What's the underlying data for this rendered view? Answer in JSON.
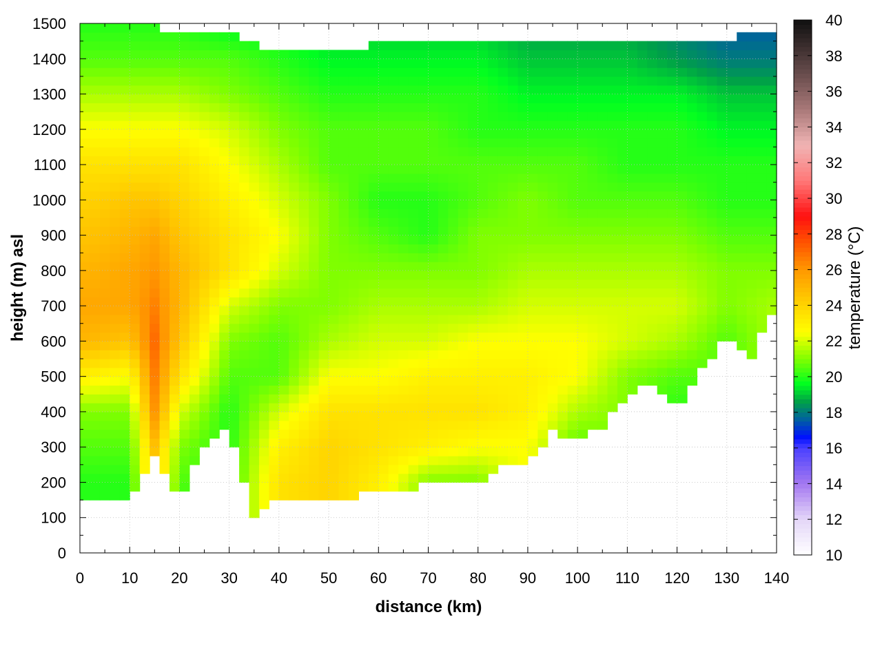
{
  "chart_data": {
    "type": "heatmap",
    "xlabel": "distance (km)",
    "ylabel": "height (m) asl",
    "colorbar_label": "temperature (°C)",
    "xlim": [
      0,
      140
    ],
    "ylim": [
      0,
      1500
    ],
    "clim": [
      10,
      40
    ],
    "grid": true,
    "x_ticks": [
      0,
      10,
      20,
      30,
      40,
      50,
      60,
      70,
      80,
      90,
      100,
      110,
      120,
      130,
      140
    ],
    "y_ticks": [
      0,
      100,
      200,
      300,
      400,
      500,
      600,
      700,
      800,
      900,
      1000,
      1100,
      1200,
      1300,
      1400,
      1500
    ],
    "colorbar_ticks": [
      10,
      12,
      14,
      16,
      18,
      20,
      22,
      24,
      26,
      28,
      30,
      32,
      34,
      36,
      38,
      40
    ],
    "colormap": [
      [
        10,
        "#ffffff"
      ],
      [
        12,
        "#e4d6f8"
      ],
      [
        14,
        "#a478f0"
      ],
      [
        16,
        "#4a40ff"
      ],
      [
        16.6,
        "#0010ff"
      ],
      [
        17.6,
        "#0060a0"
      ],
      [
        18.6,
        "#00a048"
      ],
      [
        19.6,
        "#00ff20"
      ],
      [
        21,
        "#80ff00"
      ],
      [
        22.5,
        "#ffff00"
      ],
      [
        24,
        "#ffd400"
      ],
      [
        26,
        "#ff9800"
      ],
      [
        27.6,
        "#ff5000"
      ],
      [
        29,
        "#ff1010"
      ],
      [
        31,
        "#ff7878"
      ],
      [
        33,
        "#f0b4b4"
      ],
      [
        35,
        "#a87878"
      ],
      [
        37,
        "#684c4c"
      ],
      [
        40,
        "#101010"
      ]
    ],
    "x": [
      0,
      10,
      15,
      20,
      30,
      40,
      50,
      60,
      70,
      80,
      90,
      100,
      110,
      120,
      130,
      140
    ],
    "heights": [
      100,
      200,
      300,
      400,
      500,
      600,
      700,
      800,
      900,
      1000,
      1100,
      1200,
      1300,
      1400,
      1500
    ],
    "temperature": [
      [
        20,
        20,
        20.5,
        21,
        23,
        25,
        25.5,
        25,
        24.5,
        24,
        23.5,
        22.5,
        21.5,
        20.5,
        20
      ],
      [
        20,
        20,
        20.5,
        21,
        22.5,
        24.5,
        25.5,
        25.5,
        25,
        24.5,
        23.5,
        22.5,
        21.5,
        20.5,
        20
      ],
      [
        24.5,
        24.5,
        24.5,
        26,
        26.5,
        27,
        26.5,
        26,
        25.5,
        24.5,
        23.5,
        22.5,
        21.5,
        20.5,
        20
      ],
      [
        20,
        20.5,
        21,
        22,
        23.5,
        24.5,
        25,
        25,
        24.5,
        24,
        23.5,
        22.5,
        21.5,
        20.5,
        20
      ],
      [
        20,
        20,
        20,
        20,
        20.5,
        21,
        22,
        23.5,
        23.5,
        23,
        22.5,
        22,
        21,
        20.5,
        19.5
      ],
      [
        23.5,
        23.5,
        23,
        22,
        20.5,
        20.5,
        21,
        22,
        22.5,
        22,
        21.5,
        21,
        20.5,
        20,
        19.5
      ],
      [
        24,
        24,
        24,
        23.5,
        22.5,
        21.5,
        21,
        21,
        21,
        21,
        20.5,
        20.5,
        20,
        19.5,
        19
      ],
      [
        23,
        23,
        23.5,
        23.5,
        22.5,
        22,
        21.5,
        21,
        20.5,
        20,
        20.5,
        20.5,
        20,
        19.5,
        19
      ],
      [
        21,
        21,
        23,
        23.5,
        23,
        22,
        21.5,
        21,
        20,
        20,
        20.5,
        20.5,
        20,
        19.5,
        19
      ],
      [
        21,
        21,
        22.5,
        23.5,
        23,
        22.5,
        21.5,
        21,
        21,
        20.5,
        20.5,
        20,
        20,
        19.5,
        19
      ],
      [
        22.5,
        22.5,
        22.5,
        23,
        23,
        22.5,
        22,
        21.5,
        21,
        21,
        20.5,
        20,
        19.5,
        19,
        18.5
      ],
      [
        20.5,
        20.5,
        20.5,
        21.5,
        22.5,
        22.5,
        22,
        21.5,
        21,
        20.5,
        20.5,
        20,
        19.5,
        19,
        18.5
      ],
      [
        21,
        21,
        21,
        21,
        21,
        22,
        22,
        21.5,
        21,
        20.5,
        20,
        20,
        19.5,
        19,
        18.5
      ],
      [
        20,
        20,
        20,
        20,
        20.5,
        21.5,
        22,
        21.5,
        21,
        20.5,
        20,
        20,
        19.5,
        18.5,
        18
      ],
      [
        20.5,
        20.5,
        20.5,
        20.5,
        20.5,
        20.5,
        21,
        21,
        20.5,
        20,
        20,
        19.5,
        19,
        18,
        17.5
      ],
      [
        21.5,
        21.5,
        21.5,
        21.5,
        21.5,
        21.5,
        21.5,
        21,
        20.5,
        20,
        20,
        19.5,
        19,
        18,
        17.5
      ]
    ],
    "ground": {
      "x": [
        0,
        5,
        10,
        15,
        20,
        25,
        30,
        35,
        40,
        45,
        50,
        55,
        60,
        65,
        70,
        75,
        80,
        85,
        90,
        95,
        100,
        105,
        110,
        115,
        120,
        125,
        130,
        135,
        140
      ],
      "height": [
        140,
        150,
        135,
        280,
        150,
        300,
        360,
        100,
        150,
        160,
        140,
        160,
        180,
        165,
        200,
        190,
        200,
        240,
        260,
        340,
        310,
        360,
        450,
        480,
        400,
        520,
        620,
        560,
        700
      ]
    },
    "top": {
      "x": [
        0,
        10,
        20,
        30,
        40,
        50,
        60,
        70,
        80,
        90,
        100,
        110,
        120,
        130,
        140
      ],
      "height": [
        1490,
        1500,
        1480,
        1470,
        1420,
        1430,
        1440,
        1460,
        1440,
        1440,
        1440,
        1460,
        1450,
        1460,
        1480
      ]
    }
  }
}
